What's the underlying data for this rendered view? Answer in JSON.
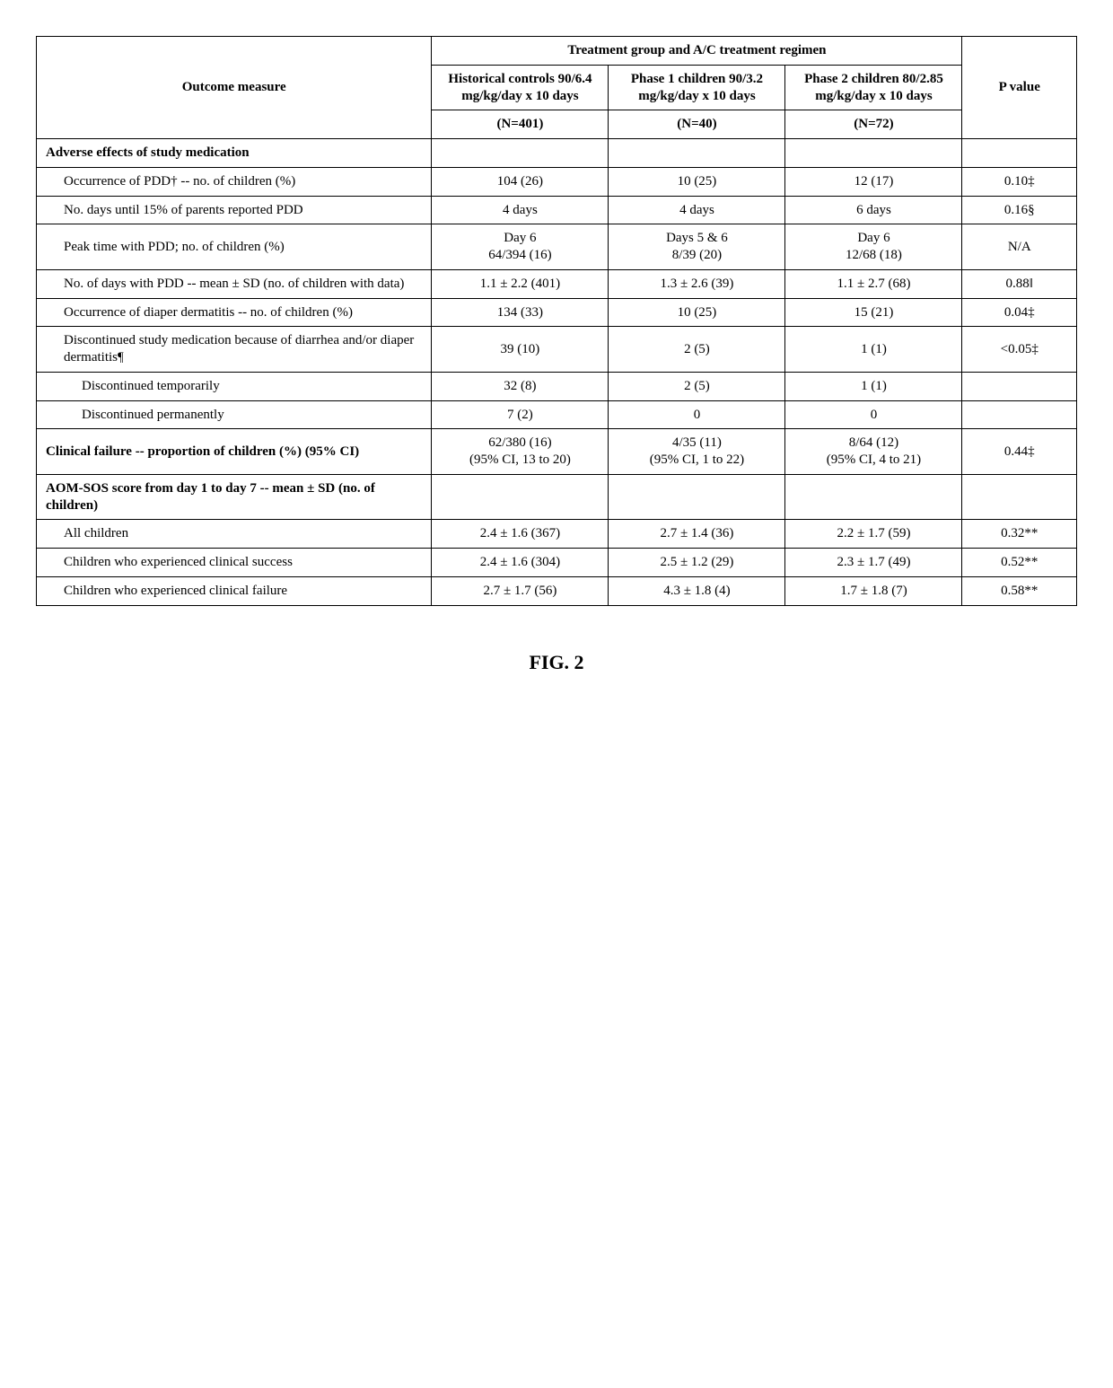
{
  "table": {
    "spanner": "Treatment group and A/C treatment regimen",
    "headers": {
      "outcome": "Outcome measure",
      "historical": "Historical controls 90/6.4 mg/kg/day x 10 days",
      "historical_n": "(N=401)",
      "phase1": "Phase 1 children 90/3.2 mg/kg/day x 10 days",
      "phase1_n": "(N=40)",
      "phase2": "Phase 2 children 80/2.85 mg/kg/day x 10 days",
      "phase2_n": "(N=72)",
      "pvalue": "P value"
    },
    "rows": [
      {
        "type": "section",
        "label": "Adverse effects of study medication"
      },
      {
        "label": "Occurrence of PDD† -- no. of children (%)",
        "indent": 1,
        "c1": "104 (26)",
        "c2": "10 (25)",
        "c3": "12 (17)",
        "p": "0.10‡"
      },
      {
        "label": "No. days until 15% of parents reported PDD",
        "indent": 1,
        "c1": "4 days",
        "c2": "4 days",
        "c3": "6 days",
        "p": "0.16§"
      },
      {
        "label": "Peak time with PDD; no. of children (%)",
        "indent": 1,
        "c1": "Day 6\n64/394 (16)",
        "c2": "Days 5 & 6\n8/39 (20)",
        "c3": "Day 6\n12/68 (18)",
        "p": "N/A"
      },
      {
        "label": "No. of days with PDD -- mean ± SD (no. of children with data)",
        "indent": 1,
        "c1": "1.1 ± 2.2 (401)",
        "c2": "1.3 ± 2.6 (39)",
        "c3": "1.1 ± 2.7 (68)",
        "p": "0.88‖"
      },
      {
        "label": "Occurrence of diaper dermatitis -- no. of children (%)",
        "indent": 1,
        "c1": "134 (33)",
        "c2": "10 (25)",
        "c3": "15 (21)",
        "p": "0.04‡"
      },
      {
        "label": "Discontinued study medication because of diarrhea and/or diaper dermatitis¶",
        "indent": 1,
        "c1": "39 (10)",
        "c2": "2 (5)",
        "c3": "1 (1)",
        "p": "<0.05‡"
      },
      {
        "label": "Discontinued temporarily",
        "indent": 2,
        "c1": "32 (8)",
        "c2": "2 (5)",
        "c3": "1 (1)",
        "p": ""
      },
      {
        "label": "Discontinued permanently",
        "indent": 2,
        "c1": "7 (2)",
        "c2": "0",
        "c3": "0",
        "p": ""
      },
      {
        "type": "section",
        "label": "Clinical failure -- proportion of children (%) (95% CI)",
        "c1": "62/380 (16)\n(95% CI, 13 to 20)",
        "c2": "4/35 (11)\n(95% CI, 1 to 22)",
        "c3": "8/64 (12)\n(95% CI, 4 to 21)",
        "p": "0.44‡"
      },
      {
        "type": "section",
        "label": "AOM-SOS score from day 1 to day 7 -- mean ± SD (no. of children)"
      },
      {
        "label": "All children",
        "indent": 1,
        "c1": "2.4 ± 1.6 (367)",
        "c2": "2.7 ± 1.4 (36)",
        "c3": "2.2 ± 1.7 (59)",
        "p": "0.32**"
      },
      {
        "label": "Children who experienced clinical success",
        "indent": 1,
        "c1": "2.4 ± 1.6 (304)",
        "c2": "2.5 ± 1.2 (29)",
        "c3": "2.3 ± 1.7 (49)",
        "p": "0.52**"
      },
      {
        "label": "Children who experienced clinical failure",
        "indent": 1,
        "c1": "2.7 ± 1.7 (56)",
        "c2": "4.3 ± 1.8 (4)",
        "c3": "1.7 ± 1.8 (7)",
        "p": "0.58**"
      }
    ]
  },
  "figure_label": "FIG. 2"
}
